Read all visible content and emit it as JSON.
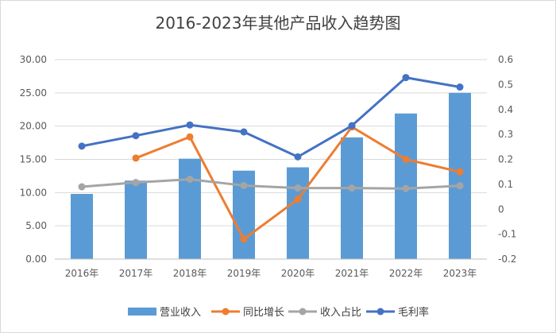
{
  "chart_data": {
    "type": "bar",
    "title": "2016-2023年其他产品收入趋势图",
    "categories": [
      "2016年",
      "2017年",
      "2018年",
      "2019年",
      "2020年",
      "2021年",
      "2022年",
      "2023年"
    ],
    "left_axis": {
      "ylim": [
        0,
        30
      ],
      "ticks": [
        "0.00",
        "5.00",
        "10.00",
        "15.00",
        "20.00",
        "25.00",
        "30.00"
      ]
    },
    "right_axis": {
      "ylim": [
        -0.2,
        0.6
      ],
      "ticks": [
        "-0.2",
        "-0.1",
        "0",
        "0.1",
        "0.2",
        "0.3",
        "0.4",
        "0.5",
        "0.6"
      ]
    },
    "series": [
      {
        "name": "营业收入",
        "type": "bar",
        "axis": "left",
        "color": "#5B9BD5",
        "values": [
          9.8,
          11.8,
          15.1,
          13.3,
          13.8,
          18.3,
          21.9,
          25.0
        ]
      },
      {
        "name": "同比增长",
        "type": "line",
        "axis": "right",
        "color": "#ED7D31",
        "values": [
          null,
          0.205,
          0.29,
          -0.12,
          0.04,
          0.33,
          0.2,
          0.15
        ]
      },
      {
        "name": "收入占比",
        "type": "line",
        "axis": "right",
        "color": "#A5A5A5",
        "values": [
          0.09,
          0.107,
          0.12,
          0.095,
          0.085,
          0.085,
          0.083,
          0.094
        ]
      },
      {
        "name": "毛利率",
        "type": "line",
        "axis": "right",
        "color": "#4472C4",
        "values": [
          0.253,
          0.295,
          0.338,
          0.31,
          0.21,
          0.335,
          0.528,
          0.49
        ]
      }
    ],
    "legend_position": "bottom",
    "grid": true
  }
}
